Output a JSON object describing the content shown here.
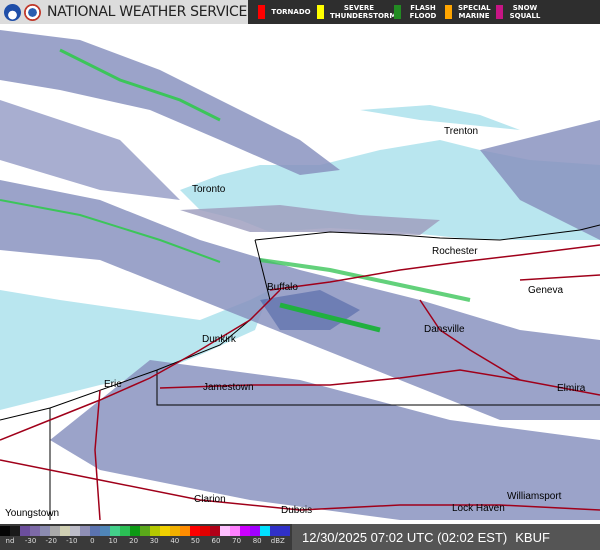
{
  "header": {
    "title": "NATIONAL WEATHER SERVICE",
    "warnings": [
      {
        "label": "TORNADO",
        "color": "#ff0000"
      },
      {
        "label": "SEVERE THUNDERSTORM",
        "color": "#ffff00"
      },
      {
        "label": "FLASH FLOOD",
        "color": "#228b22"
      },
      {
        "label": "SPECIAL MARINE",
        "color": "#ffa500"
      },
      {
        "label": "SNOW SQUALL",
        "color": "#c71585"
      }
    ]
  },
  "map": {
    "cities": [
      {
        "name": "Trenton"
      },
      {
        "name": "Toronto"
      },
      {
        "name": "Rochester"
      },
      {
        "name": "Buffalo"
      },
      {
        "name": "Geneva"
      },
      {
        "name": "Dunkirk"
      },
      {
        "name": "Dansville"
      },
      {
        "name": "Erie"
      },
      {
        "name": "Jamestown"
      },
      {
        "name": "Elmira"
      },
      {
        "name": "Clarion"
      },
      {
        "name": "Dubois"
      },
      {
        "name": "Lock Haven"
      },
      {
        "name": "Williamsport"
      },
      {
        "name": "Youngstown"
      }
    ],
    "colors": {
      "lake": "#b9e6ef",
      "radar_light": "#8a93c0",
      "radar_mid": "#5568a8",
      "radar_green": "#3cc55a",
      "road": "#a0001a",
      "border": "#000000"
    }
  },
  "legend": {
    "colorbar": [
      "#050505",
      "#1a1a1a",
      "#6b4e9c",
      "#7d6aa8",
      "#8b8bb0",
      "#a9a9a9",
      "#cfcfb2",
      "#bdbdc8",
      "#8f8fb5",
      "#5b73b0",
      "#4f86b8",
      "#43d08a",
      "#2bbf55",
      "#0c9a14",
      "#5aa81a",
      "#b4c800",
      "#f0d000",
      "#f0b000",
      "#ff8c00",
      "#ff0000",
      "#e00000",
      "#b00018",
      "#ffc0ff",
      "#ff80ff",
      "#cc00ff",
      "#a000ff",
      "#00e0ff",
      "#3030c8",
      "#3030c8"
    ],
    "ticks": [
      "nd",
      "-30",
      "-20",
      "-10",
      "0",
      "10",
      "20",
      "30",
      "40",
      "50",
      "60",
      "70",
      "80",
      "dBZ"
    ]
  },
  "timestamp": "12/30/2025 07:02 UTC (02:02 EST)",
  "station": "KBUF"
}
